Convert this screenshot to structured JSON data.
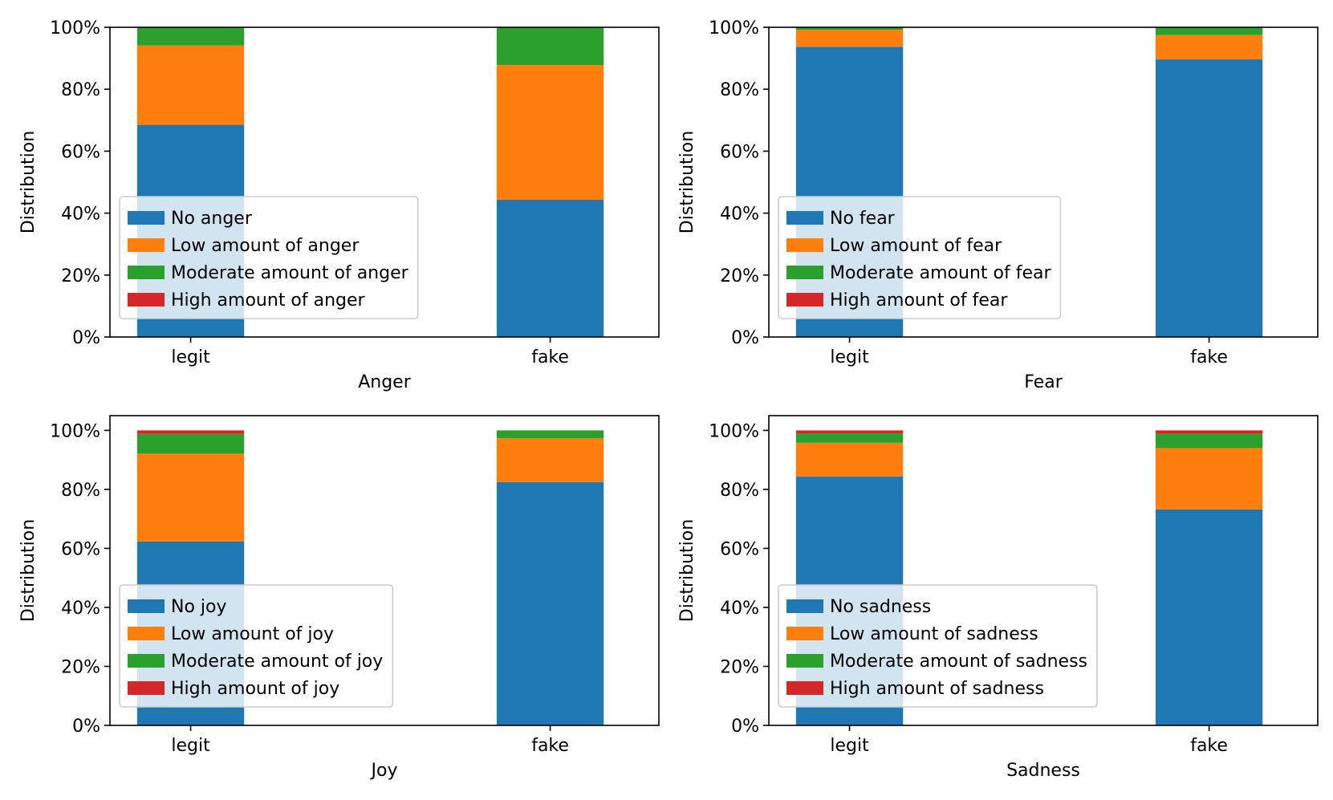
{
  "colors": {
    "series": [
      "#1f77b4",
      "#ff7f0e",
      "#2ca02c",
      "#d62728"
    ],
    "axis": "#000000",
    "legend_border": "#cccccc",
    "legend_bg": "#ffffff"
  },
  "chart_data": [
    {
      "type": "bar",
      "stacked": true,
      "xlabel": "Anger",
      "ylabel": "Distribution",
      "categories": [
        "legit",
        "fake"
      ],
      "ylim": [
        0,
        100
      ],
      "yticks": [
        0,
        20,
        40,
        60,
        80,
        100
      ],
      "ytick_labels": [
        "0%",
        "20%",
        "40%",
        "60%",
        "80%",
        "100%"
      ],
      "legend_position": "lower-left",
      "series": [
        {
          "name": "No anger",
          "values": [
            68.5,
            44.3
          ]
        },
        {
          "name": "Low amount of anger",
          "values": [
            25.6,
            43.5
          ]
        },
        {
          "name": "Moderate amount of anger",
          "values": [
            5.9,
            12.2
          ]
        },
        {
          "name": "High amount of anger",
          "values": [
            0,
            0
          ]
        }
      ]
    },
    {
      "type": "bar",
      "stacked": true,
      "xlabel": "Fear",
      "ylabel": "Distribution",
      "categories": [
        "legit",
        "fake"
      ],
      "ylim": [
        0,
        100
      ],
      "yticks": [
        0,
        20,
        40,
        60,
        80,
        100
      ],
      "ytick_labels": [
        "0%",
        "20%",
        "40%",
        "60%",
        "80%",
        "100%"
      ],
      "legend_position": "lower-left",
      "series": [
        {
          "name": "No fear",
          "values": [
            93.7,
            89.7
          ]
        },
        {
          "name": "Low amount of fear",
          "values": [
            5.5,
            7.8
          ]
        },
        {
          "name": "Moderate amount of fear",
          "values": [
            0.8,
            2.5
          ]
        },
        {
          "name": "High amount of fear",
          "values": [
            0,
            0
          ]
        }
      ]
    },
    {
      "type": "bar",
      "stacked": true,
      "xlabel": "Joy",
      "ylabel": "Distribution",
      "categories": [
        "legit",
        "fake"
      ],
      "ylim": [
        0,
        105
      ],
      "yticks": [
        0,
        20,
        40,
        60,
        80,
        100
      ],
      "ytick_labels": [
        "0%",
        "20%",
        "40%",
        "60%",
        "80%",
        "100%"
      ],
      "legend_position": "lower-left",
      "series": [
        {
          "name": "No joy",
          "values": [
            62.3,
            82.5
          ]
        },
        {
          "name": "Low amount of joy",
          "values": [
            29.8,
            14.8
          ]
        },
        {
          "name": "Moderate amount of joy",
          "values": [
            6.7,
            2.7
          ]
        },
        {
          "name": "High amount of joy",
          "values": [
            1.2,
            0
          ]
        }
      ]
    },
    {
      "type": "bar",
      "stacked": true,
      "xlabel": "Sadness",
      "ylabel": "Distribution",
      "categories": [
        "legit",
        "fake"
      ],
      "ylim": [
        0,
        105
      ],
      "yticks": [
        0,
        20,
        40,
        60,
        80,
        100
      ],
      "ytick_labels": [
        "0%",
        "20%",
        "40%",
        "60%",
        "80%",
        "100%"
      ],
      "legend_position": "lower-left",
      "series": [
        {
          "name": "No sadness",
          "values": [
            84.4,
            73.2
          ]
        },
        {
          "name": "Low amount of sadness",
          "values": [
            11.4,
            20.8
          ]
        },
        {
          "name": "Moderate amount of sadness",
          "values": [
            3.2,
            4.9
          ]
        },
        {
          "name": "High amount of sadness",
          "values": [
            1.0,
            1.1
          ]
        }
      ]
    }
  ]
}
